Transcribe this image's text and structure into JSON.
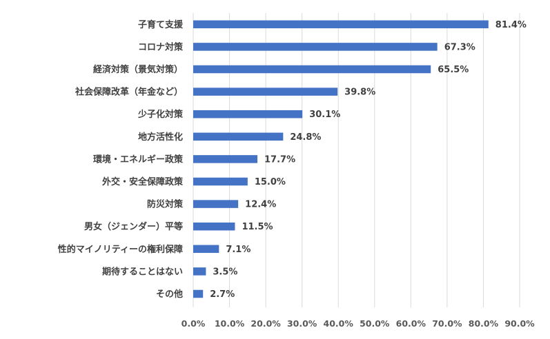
{
  "chart_data": {
    "type": "bar",
    "orientation": "horizontal",
    "categories": [
      "子育て支援",
      "コロナ対策",
      "経済対策（景気対策）",
      "社会保障改革（年金など）",
      "少子化対策",
      "地方活性化",
      "環境・エネルギー政策",
      "外交・安全保障政策",
      "防災対策",
      "男女（ジェンダー）平等",
      "性的マイノリティーの権利保障",
      "期待することはない",
      "その他"
    ],
    "values": [
      81.4,
      67.3,
      65.5,
      39.8,
      30.1,
      24.8,
      17.7,
      15.0,
      12.4,
      11.5,
      7.1,
      3.5,
      2.7
    ],
    "value_labels": [
      "81.4%",
      "67.3%",
      "65.5%",
      "39.8%",
      "30.1%",
      "24.8%",
      "17.7%",
      "15.0%",
      "12.4%",
      "11.5%",
      "7.1%",
      "3.5%",
      "2.7%"
    ],
    "xlim": [
      0,
      90
    ],
    "x_ticks": [
      0,
      10,
      20,
      30,
      40,
      50,
      60,
      70,
      80,
      90
    ],
    "x_tick_labels": [
      "0.0%",
      "10.0%",
      "20.0%",
      "30.0%",
      "40.0%",
      "50.0%",
      "60.0%",
      "70.0%",
      "80.0%",
      "90.0%"
    ],
    "grid": true,
    "legend": "none",
    "title": "",
    "xlabel": "",
    "ylabel": "",
    "colors": {
      "bar": "#4472C4",
      "grid": "#D9D9D9",
      "text": "#404040"
    }
  }
}
